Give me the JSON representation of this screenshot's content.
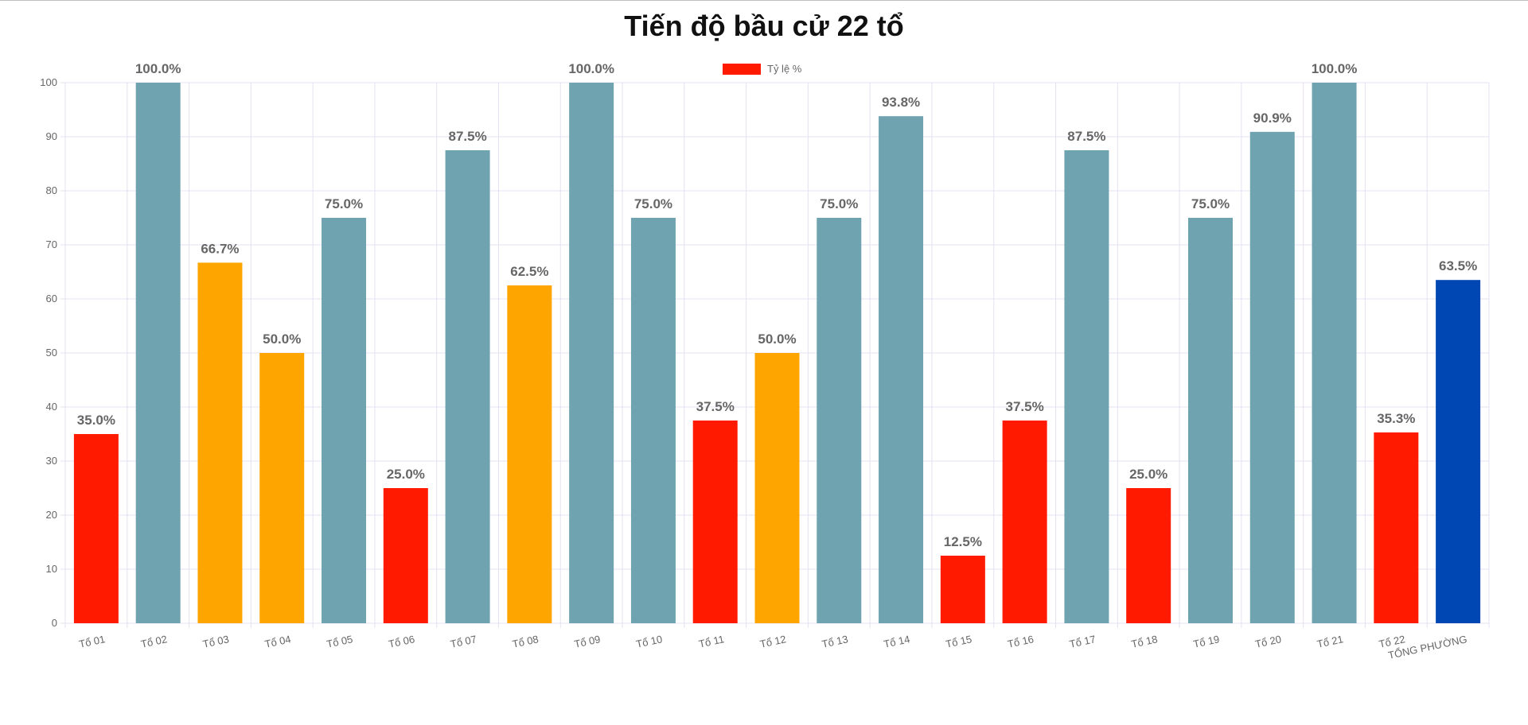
{
  "chart_data": {
    "type": "bar",
    "title": "Tiến độ bầu cử 22 tổ",
    "legend": {
      "label": "Tỷ lệ %",
      "color": "#ff1a00",
      "position": "top"
    },
    "ylim": [
      0,
      100
    ],
    "yticks": [
      0,
      10,
      20,
      30,
      40,
      50,
      60,
      70,
      80,
      90,
      100
    ],
    "grid": true,
    "categories": [
      "Tổ 01",
      "Tổ 02",
      "Tổ 03",
      "Tổ 04",
      "Tổ 05",
      "Tổ 06",
      "Tổ 07",
      "Tổ 08",
      "Tổ 09",
      "Tổ 10",
      "Tổ 11",
      "Tổ 12",
      "Tổ 13",
      "Tổ 14",
      "Tổ 15",
      "Tổ 16",
      "Tổ 17",
      "Tổ 18",
      "Tổ 19",
      "Tổ 20",
      "Tổ 21",
      "Tổ 22",
      "TỔNG PHƯỜNG"
    ],
    "values": [
      35.0,
      100.0,
      66.7,
      50.0,
      75.0,
      25.0,
      87.5,
      62.5,
      100.0,
      75.0,
      37.5,
      50.0,
      75.0,
      93.8,
      12.5,
      37.5,
      87.5,
      25.0,
      75.0,
      90.9,
      100.0,
      35.3,
      63.5
    ],
    "value_labels": [
      "35.0%",
      "100.0%",
      "66.7%",
      "50.0%",
      "75.0%",
      "25.0%",
      "87.5%",
      "62.5%",
      "100.0%",
      "75.0%",
      "37.5%",
      "50.0%",
      "75.0%",
      "93.8%",
      "12.5%",
      "37.5%",
      "87.5%",
      "25.0%",
      "75.0%",
      "90.9%",
      "100.0%",
      "35.3%",
      "63.5%"
    ],
    "bar_colors": [
      "#ff1a00",
      "#6fa3b0",
      "#ffa500",
      "#ffa500",
      "#6fa3b0",
      "#ff1a00",
      "#6fa3b0",
      "#ffa500",
      "#6fa3b0",
      "#6fa3b0",
      "#ff1a00",
      "#ffa500",
      "#6fa3b0",
      "#6fa3b0",
      "#ff1a00",
      "#ff1a00",
      "#6fa3b0",
      "#ff1a00",
      "#6fa3b0",
      "#6fa3b0",
      "#6fa3b0",
      "#ff1a00",
      "#0047b3"
    ]
  },
  "colors": {
    "red": "#ff1a00",
    "orange": "#ffa500",
    "teal": "#6fa3b0",
    "total": "#0047b3",
    "grid": "#e6e0f0",
    "text": "#666666"
  }
}
